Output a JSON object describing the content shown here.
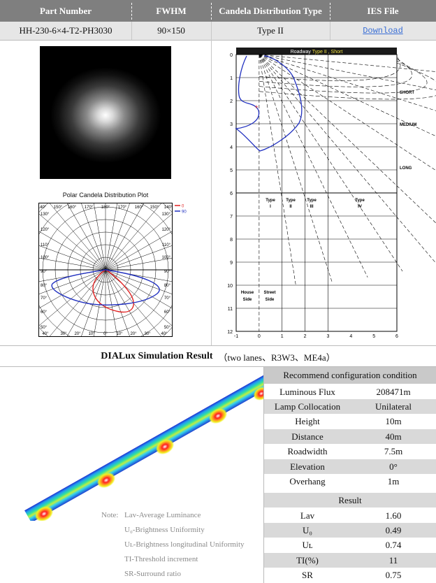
{
  "header": {
    "part_number": "Part Number",
    "fwhm": "FWHM",
    "candela_type": "Candela Distribution Type",
    "ies_file": "IES File"
  },
  "row": {
    "part_number": "HH-230-6×4-T2-PH3030",
    "fwhm": "90×150",
    "candela_type": "Type II",
    "ies_link": "Download"
  },
  "polar_plot": {
    "title": "Polar Candela Distribution Plot",
    "legend": [
      {
        "label": "0",
        "color": "#e02020"
      },
      {
        "label": "90",
        "color": "#2030c0"
      }
    ],
    "top_labels": [
      "140°",
      "150°",
      "160°",
      "170°",
      "180°",
      "170°",
      "160°",
      "150°",
      "140°"
    ],
    "left_labels": [
      "130°",
      "120°",
      "110°",
      "100°",
      "90°",
      "80°",
      "70°",
      "60°",
      "50°"
    ],
    "right_labels": [
      "130°",
      "120°",
      "110°",
      "100°",
      "90°",
      "80°",
      "70°",
      "60°",
      "50°"
    ],
    "bottom_labels": [
      "40°",
      "30°",
      "20°",
      "10°",
      "0°",
      "10°",
      "20°",
      "30°",
      "40°"
    ]
  },
  "roadway_plot": {
    "title_prefix": "Roadway",
    "title_type": "Type II",
    "title_suffix": ", Short",
    "y_ticks": [
      "0",
      "1",
      "2",
      "3",
      "4",
      "5",
      "6",
      "7",
      "8",
      "9",
      "10",
      "11",
      "12"
    ],
    "x_ticks": [
      "-1",
      "0",
      "1",
      "2",
      "3",
      "4",
      "5",
      "6"
    ],
    "zone_labels": [
      "SHORT",
      "MEDIUM",
      "LONG"
    ],
    "type_labels": [
      [
        "Type",
        "I"
      ],
      [
        "Type",
        "II"
      ],
      [
        "Type",
        "III"
      ],
      [
        "Type",
        "IV"
      ]
    ],
    "side_labels": [
      [
        "House",
        "Side"
      ],
      [
        "Street",
        "Side"
      ]
    ]
  },
  "dialux": {
    "title": "DIALux Simulation Result",
    "subtitle": "（two lanes、R3W3、ME4a）"
  },
  "config": {
    "title": "Recommend configuration condition",
    "rows": [
      {
        "label": "Luminous Flux",
        "value": "208471m"
      },
      {
        "label": "Lamp Collocation",
        "value": "Unilateral"
      },
      {
        "label": "Height",
        "value": "10m"
      },
      {
        "label": "Distance",
        "value": "40m"
      },
      {
        "label": "Roadwidth",
        "value": "7.5m"
      },
      {
        "label": "Elevation",
        "value": "0°"
      },
      {
        "label": "Overhang",
        "value": "1m"
      }
    ],
    "result_title": "Result",
    "results": [
      {
        "label": "Lav",
        "value": "1.60"
      },
      {
        "label": "U₀",
        "value": "0.49"
      },
      {
        "label": "Uʟ",
        "value": "0.74"
      },
      {
        "label": "TI(%)",
        "value": "11"
      },
      {
        "label": "SR",
        "value": "0.75"
      }
    ]
  },
  "notes": {
    "prefix": "Note:",
    "lines": [
      "Lav-Average Luminance",
      "U₀-Brightness Uniformity",
      "Uʟ-Brightness longitudinal Uniformity",
      "TI-Threshold increment",
      "SR-Surround ratio"
    ]
  },
  "colors": {
    "header_bg": "#7f7f7f",
    "table_shade": "#d9d9d9",
    "link": "#3a6fd6"
  }
}
